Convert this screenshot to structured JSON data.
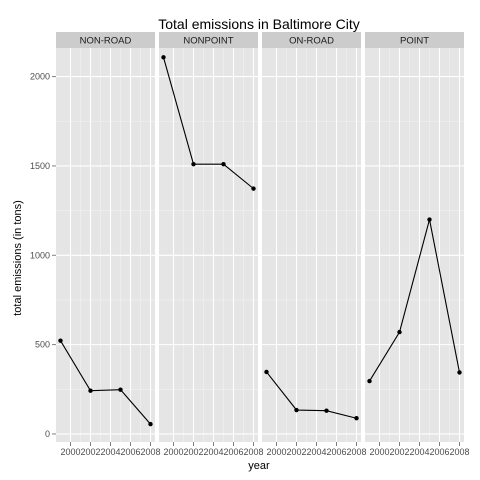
{
  "chart_data": {
    "type": "line",
    "title": "Total emissions in Baltimore City",
    "xlabel": "year",
    "ylabel": "total emissions (in tons)",
    "x": [
      1999,
      2002,
      2005,
      2008
    ],
    "x_tick_labels": [
      "2000",
      "2002",
      "2004",
      "2006",
      "2008"
    ],
    "y_tick_labels": [
      "0",
      "500",
      "1000",
      "1500",
      "2000"
    ],
    "y_ticks": [
      0,
      500,
      1000,
      1500,
      2000
    ],
    "xlim": [
      1998.55,
      2008.45
    ],
    "ylim": [
      -45,
      2160
    ],
    "facets": [
      {
        "name": "NON-ROAD",
        "values": [
          522,
          242,
          248,
          55
        ]
      },
      {
        "name": "NONPOINT",
        "values": [
          2108,
          1510,
          1510,
          1373
        ]
      },
      {
        "name": "ON-ROAD",
        "values": [
          347,
          134,
          130,
          88
        ]
      },
      {
        "name": "POINT",
        "values": [
          296,
          570,
          1200,
          344
        ]
      }
    ],
    "grid": true,
    "legend": "none",
    "colors": {
      "panel_background": "#e5e5e5",
      "grid_major": "#ffffff",
      "strip_background": "#cccccc",
      "line": "#000000"
    }
  }
}
